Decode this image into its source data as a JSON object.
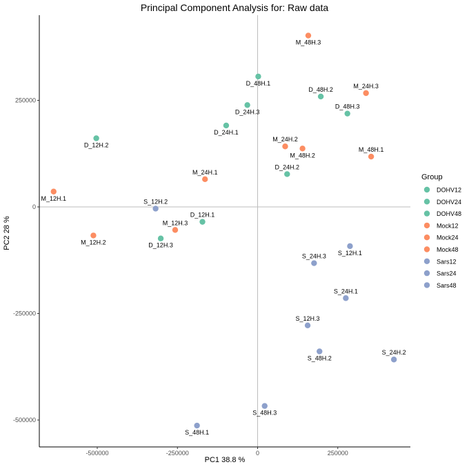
{
  "chart_data": {
    "type": "scatter",
    "title": "Principal Component Analysis for:  Raw data",
    "xlabel": "PC1 38.8 %",
    "ylabel": "PC2 28 %",
    "xlim": [
      -680000,
      480000
    ],
    "ylim": [
      -560000,
      450000
    ],
    "x_ticks": [
      {
        "value": -500000,
        "label": "-500000"
      },
      {
        "value": -250000,
        "label": "-250000"
      },
      {
        "value": 0,
        "label": "0"
      },
      {
        "value": 250000,
        "label": "250000"
      }
    ],
    "y_ticks": [
      {
        "value": 250000,
        "label": "250000"
      },
      {
        "value": 0,
        "label": "0"
      },
      {
        "value": -250000,
        "label": "-250000"
      },
      {
        "value": -500000,
        "label": "-500000"
      }
    ],
    "grid": false,
    "reference_lines": {
      "x": 0,
      "y": 0
    },
    "legend": {
      "title": "Group",
      "position": "right",
      "entries": [
        {
          "name": "DOHV12",
          "color": "#66c2a5"
        },
        {
          "name": "DOHV24",
          "color": "#66c2a5"
        },
        {
          "name": "DOHV48",
          "color": "#66c2a5"
        },
        {
          "name": "Mock12",
          "color": "#fc8d62"
        },
        {
          "name": "Mock24",
          "color": "#fc8d62"
        },
        {
          "name": "Mock48",
          "color": "#fc8d62"
        },
        {
          "name": "Sars12",
          "color": "#8da0cb"
        },
        {
          "name": "Sars24",
          "color": "#8da0cb"
        },
        {
          "name": "Sars48",
          "color": "#8da0cb"
        }
      ]
    },
    "points": [
      {
        "label": "M_48H.3",
        "group": "Mock48",
        "x": 158000,
        "y": 402000,
        "label_pos": "below"
      },
      {
        "label": "D_48H.1",
        "group": "DOHV48",
        "x": 2000,
        "y": 306000,
        "label_pos": "below"
      },
      {
        "label": "D_48H.2",
        "group": "DOHV48",
        "x": 197000,
        "y": 259000,
        "label_pos": "above"
      },
      {
        "label": "M_24H.3",
        "group": "Mock24",
        "x": 338000,
        "y": 267000,
        "label_pos": "above"
      },
      {
        "label": "D_24H.3",
        "group": "DOHV24",
        "x": -32000,
        "y": 239000,
        "label_pos": "below"
      },
      {
        "label": "D_48H.3",
        "group": "DOHV48",
        "x": 280000,
        "y": 219000,
        "label_pos": "above"
      },
      {
        "label": "D_12H.2",
        "group": "DOHV12",
        "x": -503000,
        "y": 161000,
        "label_pos": "below"
      },
      {
        "label": "D_24H.1",
        "group": "DOHV24",
        "x": -98000,
        "y": 191000,
        "label_pos": "below"
      },
      {
        "label": "M_24H.2",
        "group": "Mock24",
        "x": 86000,
        "y": 142000,
        "label_pos": "above"
      },
      {
        "label": "M_48H.2",
        "group": "Mock48",
        "x": 140000,
        "y": 137000,
        "label_pos": "below"
      },
      {
        "label": "M_48H.1",
        "group": "Mock48",
        "x": 354000,
        "y": 118000,
        "label_pos": "above"
      },
      {
        "label": "D_24H.2",
        "group": "DOHV24",
        "x": 92000,
        "y": 77000,
        "label_pos": "above"
      },
      {
        "label": "M_24H.1",
        "group": "Mock24",
        "x": -164000,
        "y": 65000,
        "label_pos": "above"
      },
      {
        "label": "M_12H.1",
        "group": "Mock12",
        "x": -636000,
        "y": 36000,
        "label_pos": "below"
      },
      {
        "label": "S_12H.2",
        "group": "Sars12",
        "x": -318000,
        "y": -4000,
        "label_pos": "above"
      },
      {
        "label": "D_12H.1",
        "group": "DOHV12",
        "x": -172000,
        "y": -35000,
        "label_pos": "above"
      },
      {
        "label": "M_12H.3",
        "group": "Mock12",
        "x": -257000,
        "y": -54000,
        "label_pos": "above"
      },
      {
        "label": "M_12H.2",
        "group": "Mock12",
        "x": -512000,
        "y": -67000,
        "label_pos": "below"
      },
      {
        "label": "D_12H.3",
        "group": "DOHV12",
        "x": -302000,
        "y": -74000,
        "label_pos": "below"
      },
      {
        "label": "S_12H.1",
        "group": "Sars12",
        "x": 288000,
        "y": -92000,
        "label_pos": "below"
      },
      {
        "label": "S_24H.3",
        "group": "Sars24",
        "x": 176000,
        "y": -132000,
        "label_pos": "above"
      },
      {
        "label": "S_24H.1",
        "group": "Sars24",
        "x": 275000,
        "y": -214000,
        "label_pos": "above"
      },
      {
        "label": "S_12H.3",
        "group": "Sars12",
        "x": 156000,
        "y": -278000,
        "label_pos": "above"
      },
      {
        "label": "S_48H.2",
        "group": "Sars48",
        "x": 193000,
        "y": -339000,
        "label_pos": "below"
      },
      {
        "label": "S_24H.2",
        "group": "Sars24",
        "x": 425000,
        "y": -358000,
        "label_pos": "above"
      },
      {
        "label": "S_48H.3",
        "group": "Sars48",
        "x": 22000,
        "y": -467000,
        "label_pos": "below"
      },
      {
        "label": "S_48H.1",
        "group": "Sars48",
        "x": -189000,
        "y": -513000,
        "label_pos": "below"
      }
    ]
  }
}
